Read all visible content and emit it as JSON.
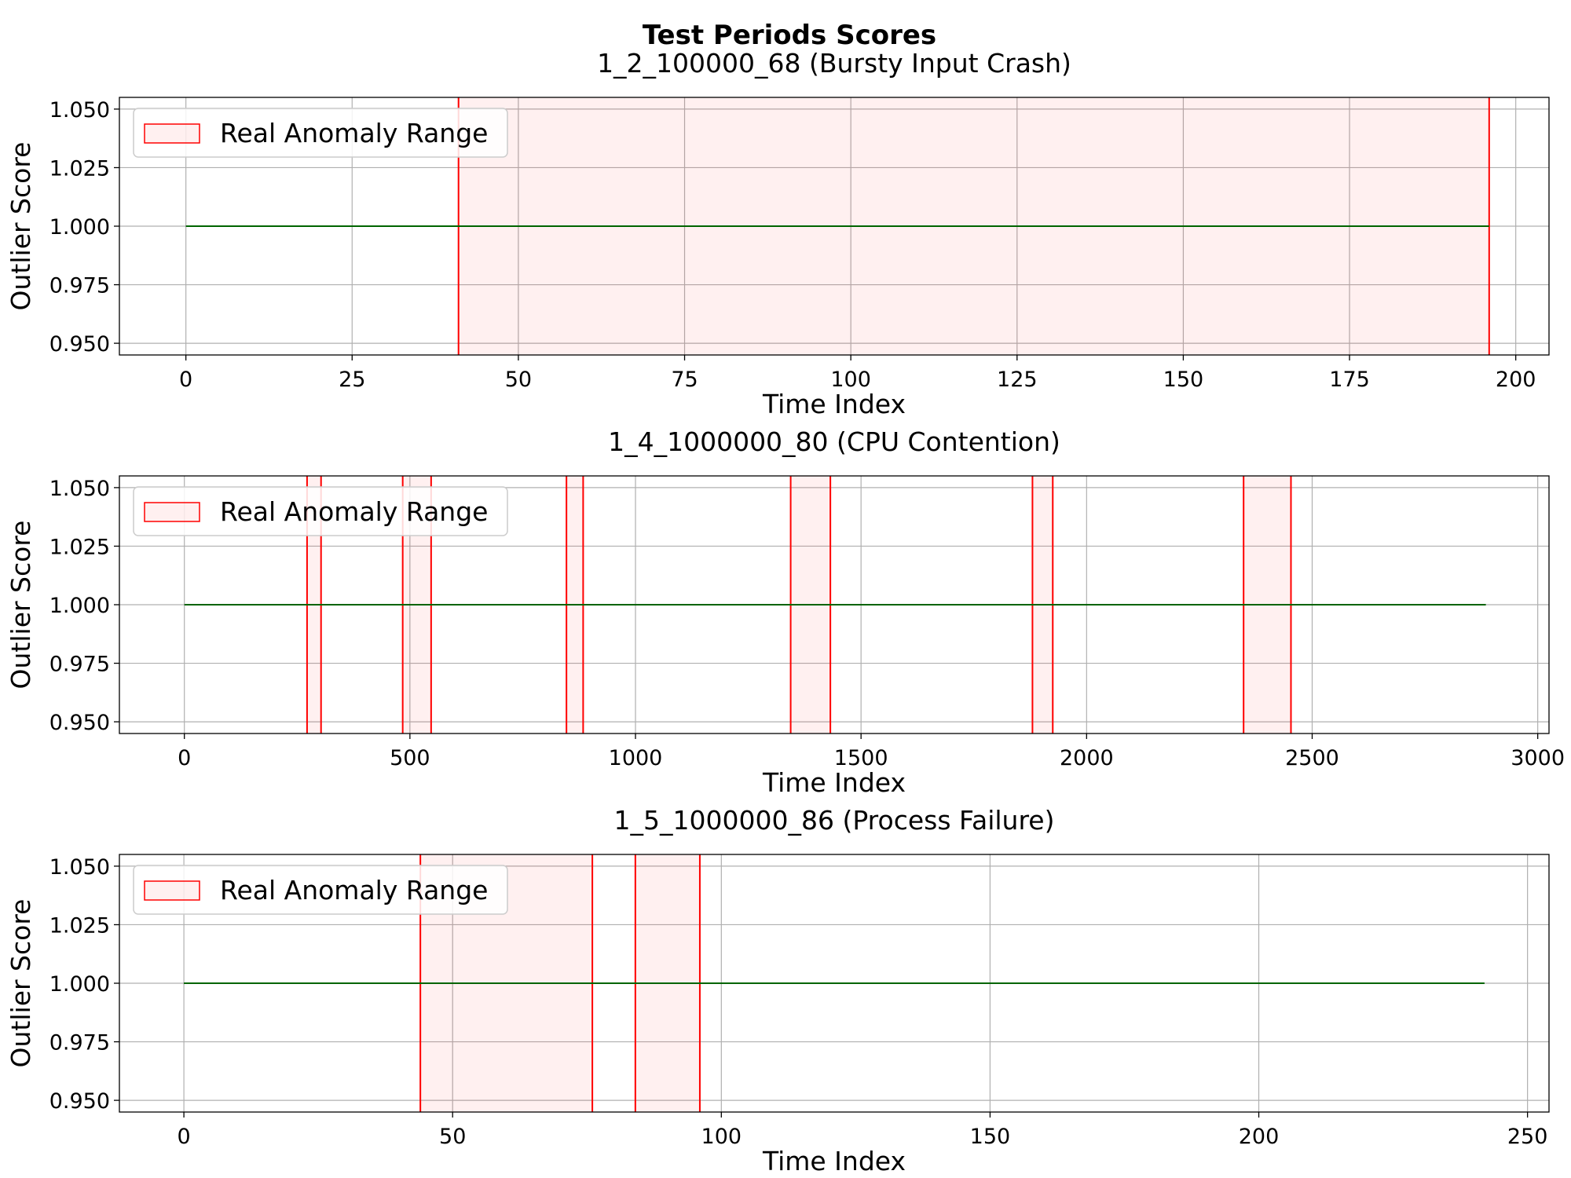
{
  "figure_title": "Test Periods Scores",
  "colors": {
    "score_line": "#006400",
    "anomaly_edge": "#ff0000",
    "anomaly_fill": "#ff0000",
    "grid": "#b0b0b0",
    "axes": "#000000"
  },
  "chart_data": [
    {
      "type": "line",
      "title": "1_2_100000_68 (Bursty Input Crash)",
      "xlabel": "Time Index",
      "ylabel": "Outlier Score",
      "xlim": [
        -10,
        205
      ],
      "ylim": [
        0.945,
        1.055
      ],
      "xticks": [
        0,
        25,
        50,
        75,
        100,
        125,
        150,
        175,
        200
      ],
      "xtick_labels": [
        "0",
        "25",
        "50",
        "75",
        "100",
        "125",
        "150",
        "175",
        "200"
      ],
      "yticks": [
        0.95,
        0.975,
        1.0,
        1.025,
        1.05
      ],
      "ytick_labels": [
        "0.950",
        "0.975",
        "1.000",
        "1.025",
        "1.050"
      ],
      "grid": true,
      "legend": {
        "position": "upper-left",
        "entries": [
          "Real Anomaly Range"
        ]
      },
      "series": [
        {
          "x": [
            0,
            196
          ],
          "y": [
            1.0,
            1.0
          ]
        }
      ],
      "anomaly_ranges": [
        [
          41,
          196
        ]
      ]
    },
    {
      "type": "line",
      "title": "1_4_1000000_80 (CPU Contention)",
      "xlabel": "Time Index",
      "ylabel": "Outlier Score",
      "xlim": [
        -144,
        3025
      ],
      "ylim": [
        0.945,
        1.055
      ],
      "xticks": [
        0,
        500,
        1000,
        1500,
        2000,
        2500,
        3000
      ],
      "xtick_labels": [
        "0",
        "500",
        "1000",
        "1500",
        "2000",
        "2500",
        "3000"
      ],
      "yticks": [
        0.95,
        0.975,
        1.0,
        1.025,
        1.05
      ],
      "ytick_labels": [
        "0.950",
        "0.975",
        "1.000",
        "1.025",
        "1.050"
      ],
      "grid": true,
      "legend": {
        "position": "upper-left",
        "entries": [
          "Real Anomaly Range"
        ]
      },
      "series": [
        {
          "x": [
            0,
            2885
          ],
          "y": [
            1.0,
            1.0
          ]
        }
      ],
      "anomaly_ranges": [
        [
          272,
          303
        ],
        [
          484,
          547
        ],
        [
          847,
          884
        ],
        [
          1344,
          1432
        ],
        [
          1880,
          1925
        ],
        [
          2348,
          2453
        ]
      ]
    },
    {
      "type": "line",
      "title": "1_5_1000000_86 (Process Failure)",
      "xlabel": "Time Index",
      "ylabel": "Outlier Score",
      "xlim": [
        -12,
        254
      ],
      "ylim": [
        0.945,
        1.055
      ],
      "xticks": [
        0,
        50,
        100,
        150,
        200,
        250
      ],
      "xtick_labels": [
        "0",
        "50",
        "100",
        "150",
        "200",
        "250"
      ],
      "yticks": [
        0.95,
        0.975,
        1.0,
        1.025,
        1.05
      ],
      "ytick_labels": [
        "0.950",
        "0.975",
        "1.000",
        "1.025",
        "1.050"
      ],
      "grid": true,
      "legend": {
        "position": "upper-left",
        "entries": [
          "Real Anomaly Range"
        ]
      },
      "series": [
        {
          "x": [
            0,
            242
          ],
          "y": [
            1.0,
            1.0
          ]
        }
      ],
      "anomaly_ranges": [
        [
          44,
          76
        ],
        [
          84,
          96
        ]
      ]
    }
  ]
}
